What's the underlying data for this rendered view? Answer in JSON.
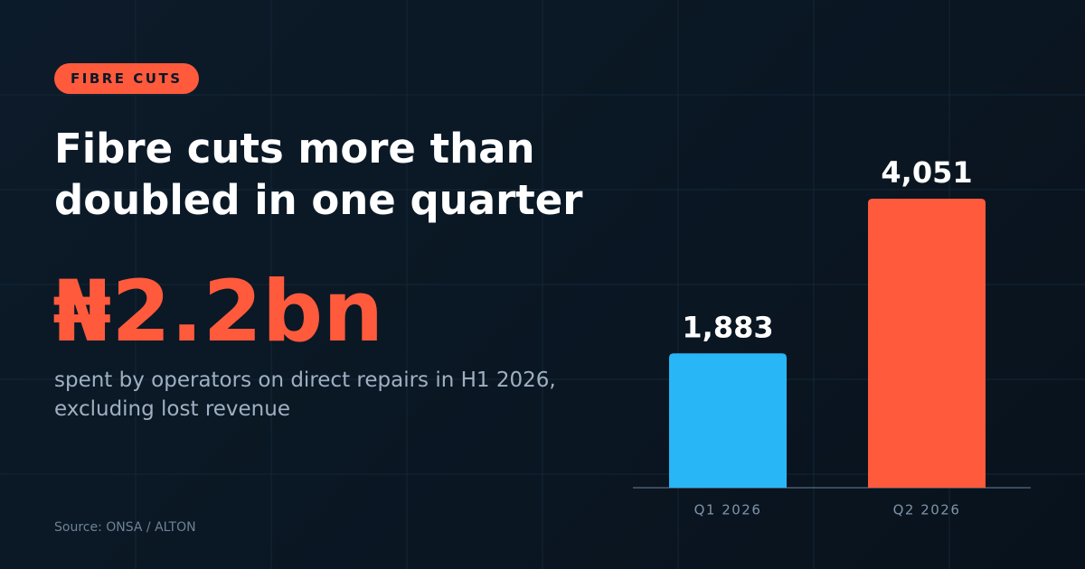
{
  "tag": "FIBRE CUTS",
  "headline": "Fibre cuts more than doubled in one quarter",
  "stat": "₦2.2bn",
  "stat_caption": "spent by operators on direct repairs in H1 2026, excluding lost revenue",
  "source": "Source: ONSA / ALTON",
  "chart_data": {
    "type": "bar",
    "categories": [
      "Q1 2026",
      "Q2 2026"
    ],
    "values": [
      1883,
      4051
    ],
    "value_labels": [
      "1,883",
      "4,051"
    ],
    "colors": [
      "#29b6f6",
      "#ff5a3c"
    ]
  }
}
